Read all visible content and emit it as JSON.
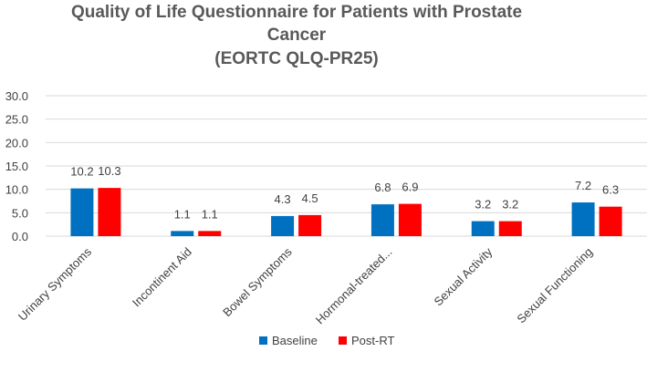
{
  "colors": {
    "baseline": "#0070c0",
    "post_rt": "#ff0000"
  },
  "chart_data": {
    "type": "bar",
    "title": [
      "Quality of Life Questionnaire for Patients with Prostate",
      "Cancer",
      "(EORTC QLQ-PR25)"
    ],
    "categories": [
      "Urinary Symptoms",
      "Incontinent Aid",
      "Bowel Symptoms",
      "Hormonal-treated...",
      "Sexual Activity",
      "Sexual Functioning"
    ],
    "series": [
      {
        "name": "Baseline",
        "values": [
          10.2,
          1.1,
          4.3,
          6.8,
          3.2,
          7.2
        ]
      },
      {
        "name": "Post-RT",
        "values": [
          10.3,
          1.1,
          4.5,
          6.9,
          3.2,
          6.3
        ]
      }
    ],
    "data_labels": [
      [
        "10.2",
        "1.1",
        "4.3",
        "6.8",
        "3.2",
        "7.2"
      ],
      [
        "10.3",
        "1.1",
        "4.5",
        "6.9",
        "3.2",
        "6.3"
      ]
    ],
    "yticks": [
      "0.0",
      "5.0",
      "10.0",
      "15.0",
      "20.0",
      "25.0",
      "30.0"
    ],
    "ylim": [
      0,
      30
    ],
    "grid": true,
    "legend": "bottom-center"
  }
}
